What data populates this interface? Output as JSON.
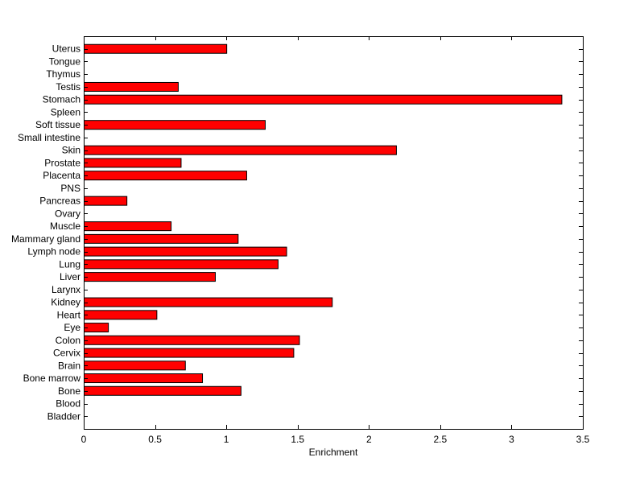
{
  "chart_data": {
    "type": "bar",
    "orientation": "horizontal",
    "categories": [
      "Uterus",
      "Tongue",
      "Thymus",
      "Testis",
      "Stomach",
      "Spleen",
      "Soft tissue",
      "Small intestine",
      "Skin",
      "Prostate",
      "Placenta",
      "PNS",
      "Pancreas",
      "Ovary",
      "Muscle",
      "Mammary gland",
      "Lymph node",
      "Lung",
      "Liver",
      "Larynx",
      "Kidney",
      "Heart",
      "Eye",
      "Colon",
      "Cervix",
      "Brain",
      "Bone marrow",
      "Bone",
      "Blood",
      "Bladder"
    ],
    "values": [
      1.0,
      0,
      0,
      0.66,
      3.35,
      0,
      1.27,
      0,
      2.19,
      0.68,
      1.14,
      0,
      0.3,
      0,
      0.61,
      1.08,
      1.42,
      1.36,
      0.92,
      0,
      1.74,
      0.51,
      0.17,
      1.51,
      1.47,
      0.71,
      0.83,
      1.1,
      0,
      0
    ],
    "xlabel": "Enrichment",
    "xlim": [
      0,
      3.5
    ],
    "xticks": [
      0,
      0.5,
      1,
      1.5,
      2,
      2.5,
      3,
      3.5
    ],
    "xtick_labels": [
      "0",
      "0.5",
      "1",
      "1.5",
      "2",
      "2.5",
      "3",
      "3.5"
    ],
    "bar_color": "#ff0000",
    "bar_edge_color": "#000000",
    "grid": false,
    "legend": false
  }
}
